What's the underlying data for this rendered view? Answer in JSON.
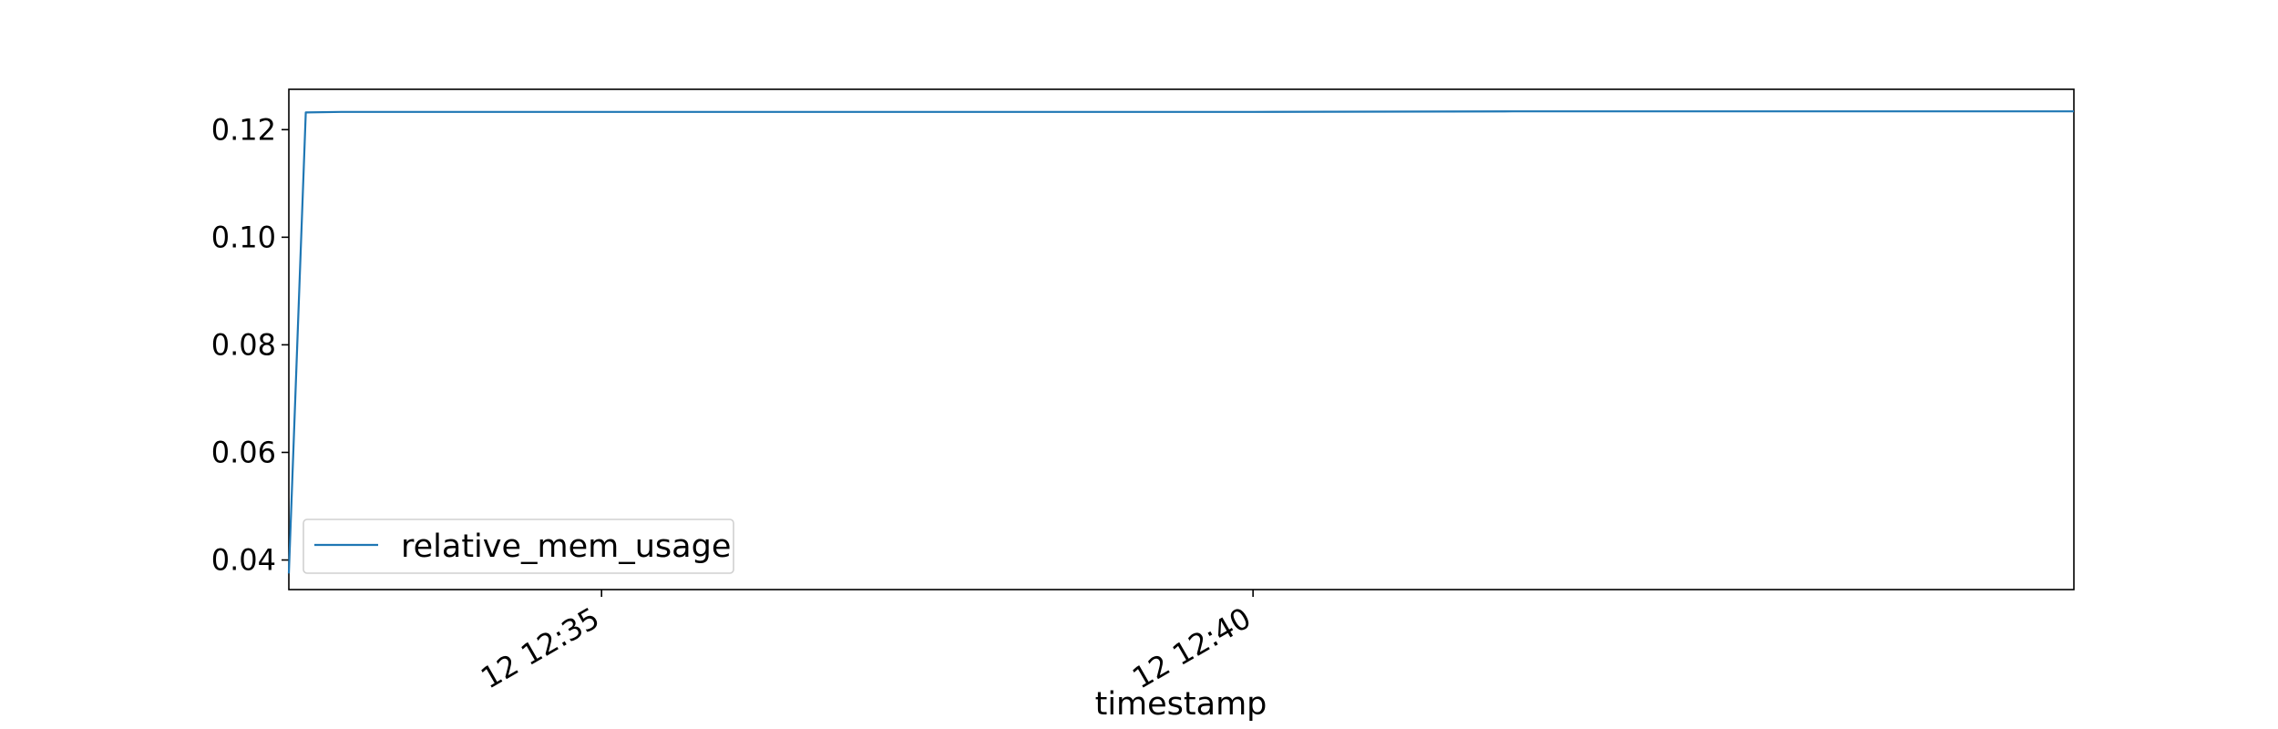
{
  "chart_data": {
    "type": "line",
    "title": "",
    "xlabel": "timestamp",
    "ylabel": "",
    "x_unit": "minutes (12 12:MM)",
    "xlim": [
      32.6,
      46.3
    ],
    "ylim": [
      0.0345,
      0.1275
    ],
    "x_ticks": [
      {
        "value": 35,
        "label": "12 12:35"
      },
      {
        "value": 40,
        "label": "12 12:40"
      }
    ],
    "y_ticks": [
      {
        "value": 0.04,
        "label": "0.04"
      },
      {
        "value": 0.06,
        "label": "0.06"
      },
      {
        "value": 0.08,
        "label": "0.08"
      },
      {
        "value": 0.1,
        "label": "0.10"
      },
      {
        "value": 0.12,
        "label": "0.12"
      }
    ],
    "grid": false,
    "legend_position": "lower-left",
    "series": [
      {
        "name": "relative_mem_usage",
        "color": "#1f77b4",
        "x": [
          32.6,
          32.73,
          33.0,
          34.0,
          36.0,
          38.0,
          40.0,
          42.0,
          44.0,
          46.3
        ],
        "values": [
          0.0375,
          0.1232,
          0.1233,
          0.1233,
          0.1233,
          0.1233,
          0.1233,
          0.1234,
          0.1234,
          0.1234
        ]
      }
    ]
  }
}
